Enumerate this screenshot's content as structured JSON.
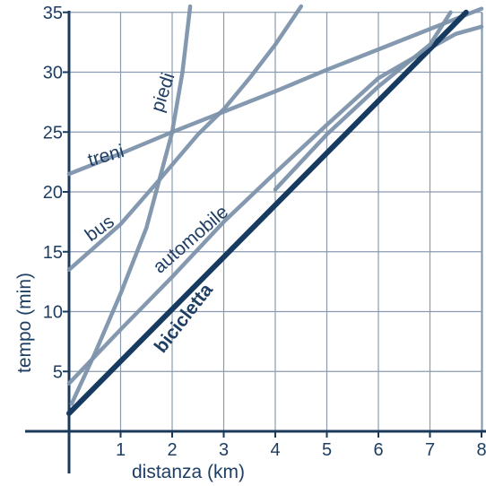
{
  "chart_data": {
    "type": "line",
    "title": "",
    "xlabel": "distanza (km)",
    "ylabel": "tempo (min)",
    "xlim": [
      0,
      8.2
    ],
    "ylim": [
      0,
      36
    ],
    "x_ticks": [
      "1",
      "2",
      "3",
      "4",
      "5",
      "6",
      "7",
      "8"
    ],
    "y_ticks": [
      "5",
      "10",
      "15",
      "20",
      "25",
      "30",
      "35"
    ],
    "grid": true,
    "colors": {
      "axis": "#1a3a5c",
      "grid": "#8a9bb0",
      "series_light": "#7d93ab",
      "series_dark": "#173a60",
      "text": "#1e3e63"
    },
    "series": [
      {
        "name": "piedi",
        "emphasis": false,
        "points": [
          [
            0.05,
            2.3
          ],
          [
            0.5,
            6.5
          ],
          [
            1.0,
            11.5
          ],
          [
            1.5,
            17.0
          ],
          [
            2.0,
            25.0
          ],
          [
            2.2,
            30.0
          ],
          [
            2.35,
            35.5
          ]
        ]
      },
      {
        "name": "treni",
        "emphasis": false,
        "points": [
          [
            0,
            21.5
          ],
          [
            1,
            23.2
          ],
          [
            2,
            25.0
          ],
          [
            3,
            26.7
          ],
          [
            4,
            28.4
          ],
          [
            5,
            30.2
          ],
          [
            6,
            31.9
          ],
          [
            7,
            33.6
          ],
          [
            8,
            35.3
          ]
        ]
      },
      {
        "name": "bus",
        "emphasis": false,
        "points": [
          [
            0,
            13.5
          ],
          [
            1,
            17.3
          ],
          [
            1.75,
            21.0
          ],
          [
            2.5,
            24.8
          ],
          [
            3,
            26.9
          ],
          [
            3.5,
            29.5
          ],
          [
            4,
            32.3
          ],
          [
            4.5,
            35.5
          ]
        ]
      },
      {
        "name": "automobile",
        "emphasis": false,
        "points": [
          [
            0,
            4.0
          ],
          [
            1,
            8.5
          ],
          [
            2,
            12.9
          ],
          [
            3,
            17.5
          ],
          [
            4,
            21.6
          ],
          [
            5,
            25.6
          ],
          [
            6,
            29.5
          ],
          [
            7,
            32.0
          ],
          [
            7.5,
            33.2
          ],
          [
            8.0,
            33.8
          ]
        ]
      },
      {
        "name": "bicicletta",
        "emphasis": true,
        "points": [
          [
            0,
            1.5
          ],
          [
            7.7,
            35.0
          ]
        ]
      },
      {
        "name": "",
        "emphasis": false,
        "points": [
          [
            4.0,
            20.2
          ],
          [
            5,
            24.8
          ],
          [
            6,
            28.8
          ],
          [
            7,
            32.3
          ],
          [
            7.4,
            35.0
          ]
        ]
      }
    ]
  }
}
